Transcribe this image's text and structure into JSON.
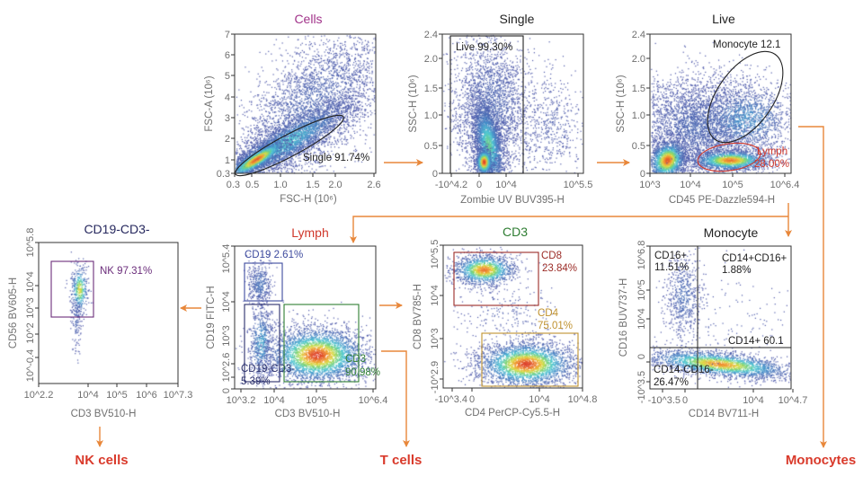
{
  "colors": {
    "arrow": "#e8873a",
    "axis": "#333333",
    "outcome": "#d93a2b"
  },
  "panels": [
    {
      "id": "cells",
      "title": "Cells",
      "title_color": "#a1338a",
      "xlabel": "FSC-H (10⁶)",
      "ylabel": "FSC-A (10⁶)",
      "xticks": [
        "0.3",
        "0.5",
        "1.0",
        "1.5",
        "2.0",
        "2.6"
      ],
      "yticks": [
        "7",
        "6",
        "5",
        "4",
        "3",
        "2",
        "1",
        "0.3"
      ],
      "gates": [
        {
          "shape": "ellipse",
          "color": "#222222",
          "lines": [
            "Single 91.74%"
          ]
        }
      ]
    },
    {
      "id": "single",
      "title": "Single",
      "title_color": "#222222",
      "xlabel": "Zombie UV BUV395-H",
      "ylabel": "SSC-H (10⁶)",
      "xticks": [
        "-10^4.2",
        "0",
        "10^4",
        "10^5.5"
      ],
      "yticks": [
        "2.4",
        "2.0",
        "1.5",
        "1.0",
        "0.5",
        "0"
      ],
      "gates": [
        {
          "shape": "rect",
          "color": "#222222",
          "lines": [
            "Live 99.30%"
          ]
        }
      ]
    },
    {
      "id": "live",
      "title": "Live",
      "title_color": "#222222",
      "xlabel": "CD45 PE-Dazzle594-H",
      "ylabel": "SSC-H (10⁶)",
      "xticks": [
        "10^3",
        "10^4",
        "10^5",
        "10^6.4"
      ],
      "yticks": [
        "2.4",
        "2.0",
        "1.5",
        "1.0",
        "0.5",
        "0"
      ],
      "gates": [
        {
          "shape": "ellipse",
          "color": "#222222",
          "lines": [
            "Monocyte 12.1"
          ]
        },
        {
          "shape": "ellipse",
          "color": "#d0382c",
          "lines": [
            "Lymph",
            "28.00%"
          ]
        }
      ]
    },
    {
      "id": "cd19-cd3-neg",
      "title": "CD19-CD3-",
      "title_color": "#26285e",
      "xlabel": "CD3 BV510-H",
      "ylabel": "CD56 BV605-H",
      "xticks": [
        "10^2.2",
        "10^4",
        "10^5",
        "10^6",
        "10^7.3"
      ],
      "yticks": [
        "10^5.8",
        "10^4",
        "10^3",
        "10^2",
        "10^-0.4"
      ],
      "gates": [
        {
          "shape": "rect",
          "color": "#6b2d7b",
          "lines": [
            "NK 97.31%"
          ]
        }
      ]
    },
    {
      "id": "lymph",
      "title": "Lymph",
      "title_color": "#d0382c",
      "xlabel": "CD3 BV510-H",
      "ylabel": "CD19 FITC-H",
      "xticks": [
        "10^3.2",
        "10^4",
        "10^5",
        "10^6.4"
      ],
      "yticks": [
        "10^5.4",
        "10^4",
        "10^3",
        "10^2.6",
        "0"
      ],
      "gates": [
        {
          "shape": "rect",
          "color": "#3d4a9e",
          "lines": [
            "CD19  2.61%"
          ]
        },
        {
          "shape": "rect",
          "color": "#2a2f6b",
          "lines": [
            "CD19-CD3-",
            "5.39%"
          ]
        },
        {
          "shape": "rect",
          "color": "#2e7d32",
          "lines": [
            "CD3",
            "90.98%"
          ]
        }
      ]
    },
    {
      "id": "cd3",
      "title": "CD3",
      "title_color": "#2e7d32",
      "xlabel": "CD4 PerCP-Cy5.5-H",
      "ylabel": "CD8 BV785-H",
      "xticks": [
        "-10^3.4",
        "0",
        "10^4",
        "10^4.8"
      ],
      "yticks": [
        "10^5.5",
        "10^4",
        "10^3",
        "-10^2.9"
      ],
      "gates": [
        {
          "shape": "rect",
          "color": "#9b2b26",
          "lines": [
            "CD8",
            "23.84%"
          ]
        },
        {
          "shape": "rect",
          "color": "#c0922f",
          "lines": [
            "CD4",
            "75.01%"
          ]
        }
      ]
    },
    {
      "id": "monocyte",
      "title": "Monocyte",
      "title_color": "#222222",
      "xlabel": "CD14 BV711-H",
      "ylabel": "CD16 BUV737-H",
      "xticks": [
        "-10^3.5",
        "0",
        "10^4",
        "10^4.7"
      ],
      "yticks": [
        "10^6.8",
        "10^5",
        "10^4",
        "0",
        "-10^3.5"
      ],
      "gates": [
        {
          "shape": "quadrant",
          "color": "#222222",
          "lines": [
            "CD16+",
            "11.51%"
          ]
        },
        {
          "shape": "quadrant",
          "color": "#222222",
          "lines": [
            "CD14+CD16+",
            "1.88%"
          ]
        },
        {
          "shape": "quadrant",
          "color": "#222222",
          "lines": [
            "CD14+  60.1"
          ]
        },
        {
          "shape": "quadrant",
          "color": "#222222",
          "lines": [
            "CD14-CD16-",
            "26.47%"
          ]
        }
      ]
    }
  ],
  "outcomes": {
    "nk": "NK cells",
    "t": "T cells",
    "mono": "Monocytes"
  }
}
